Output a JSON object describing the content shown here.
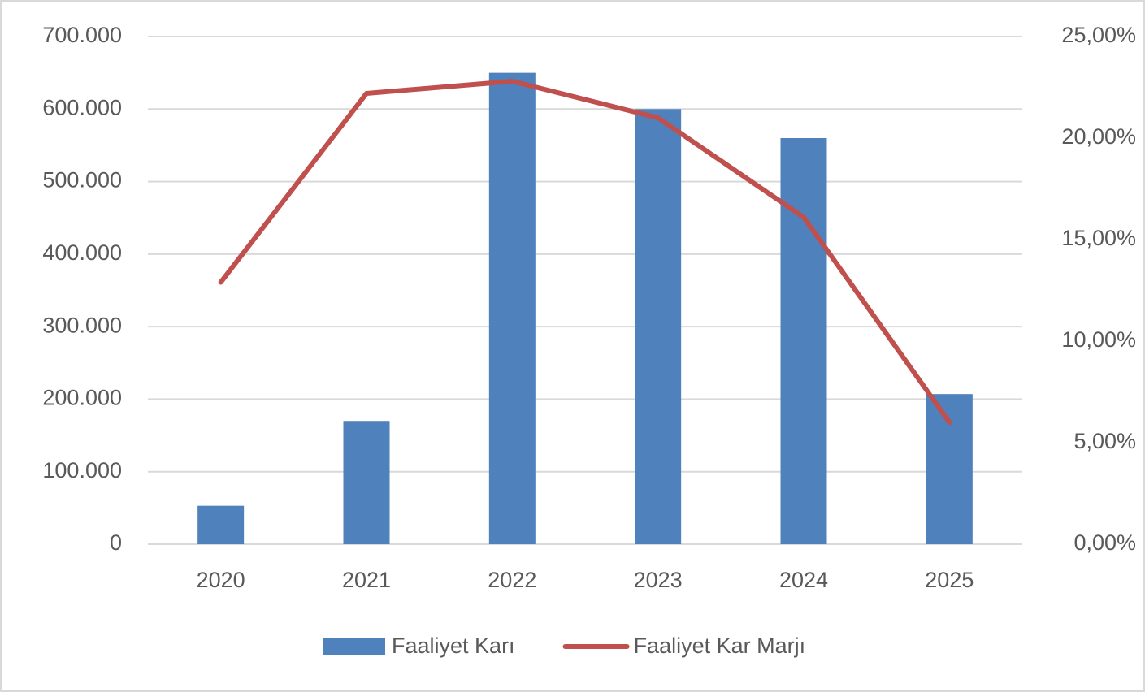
{
  "chart_data": {
    "type": "bar_line",
    "categories": [
      "2020",
      "2021",
      "2022",
      "2023",
      "2024",
      "2025"
    ],
    "series": [
      {
        "name": "Faaliyet Karı",
        "type": "bar",
        "color": "#4f81bd",
        "values": [
          53000,
          170000,
          650000,
          600000,
          560000,
          207000
        ]
      },
      {
        "name": "Faaliyet Kar Marjı",
        "type": "line",
        "axis": "y2",
        "color": "#c0504d",
        "values": [
          12.9,
          22.2,
          22.8,
          21.0,
          16.1,
          6.0
        ]
      }
    ],
    "ylim": [
      0,
      700000
    ],
    "yticks": [
      0,
      {
        "value": 100000,
        "label": "100.000"
      },
      {
        "value": 200000,
        "label": "200.000"
      },
      {
        "value": 300000,
        "label": "300.000"
      },
      {
        "value": 400000,
        "label": "400.000"
      },
      {
        "value": 500000,
        "label": "500.000"
      },
      {
        "value": 600000,
        "label": "600.000"
      },
      {
        "value": 700000,
        "label": "700.000"
      }
    ],
    "y2lim": [
      0,
      25
    ],
    "y2ticks": [
      {
        "value": 0,
        "label": "0,00%"
      },
      {
        "value": 5,
        "label": "5,00%"
      },
      {
        "value": 10,
        "label": "10,00%"
      },
      {
        "value": 15,
        "label": "15,00%"
      },
      {
        "value": 20,
        "label": "20,00%"
      },
      {
        "value": 25,
        "label": "25,00%"
      }
    ],
    "grid": true,
    "legend": "bottom"
  }
}
